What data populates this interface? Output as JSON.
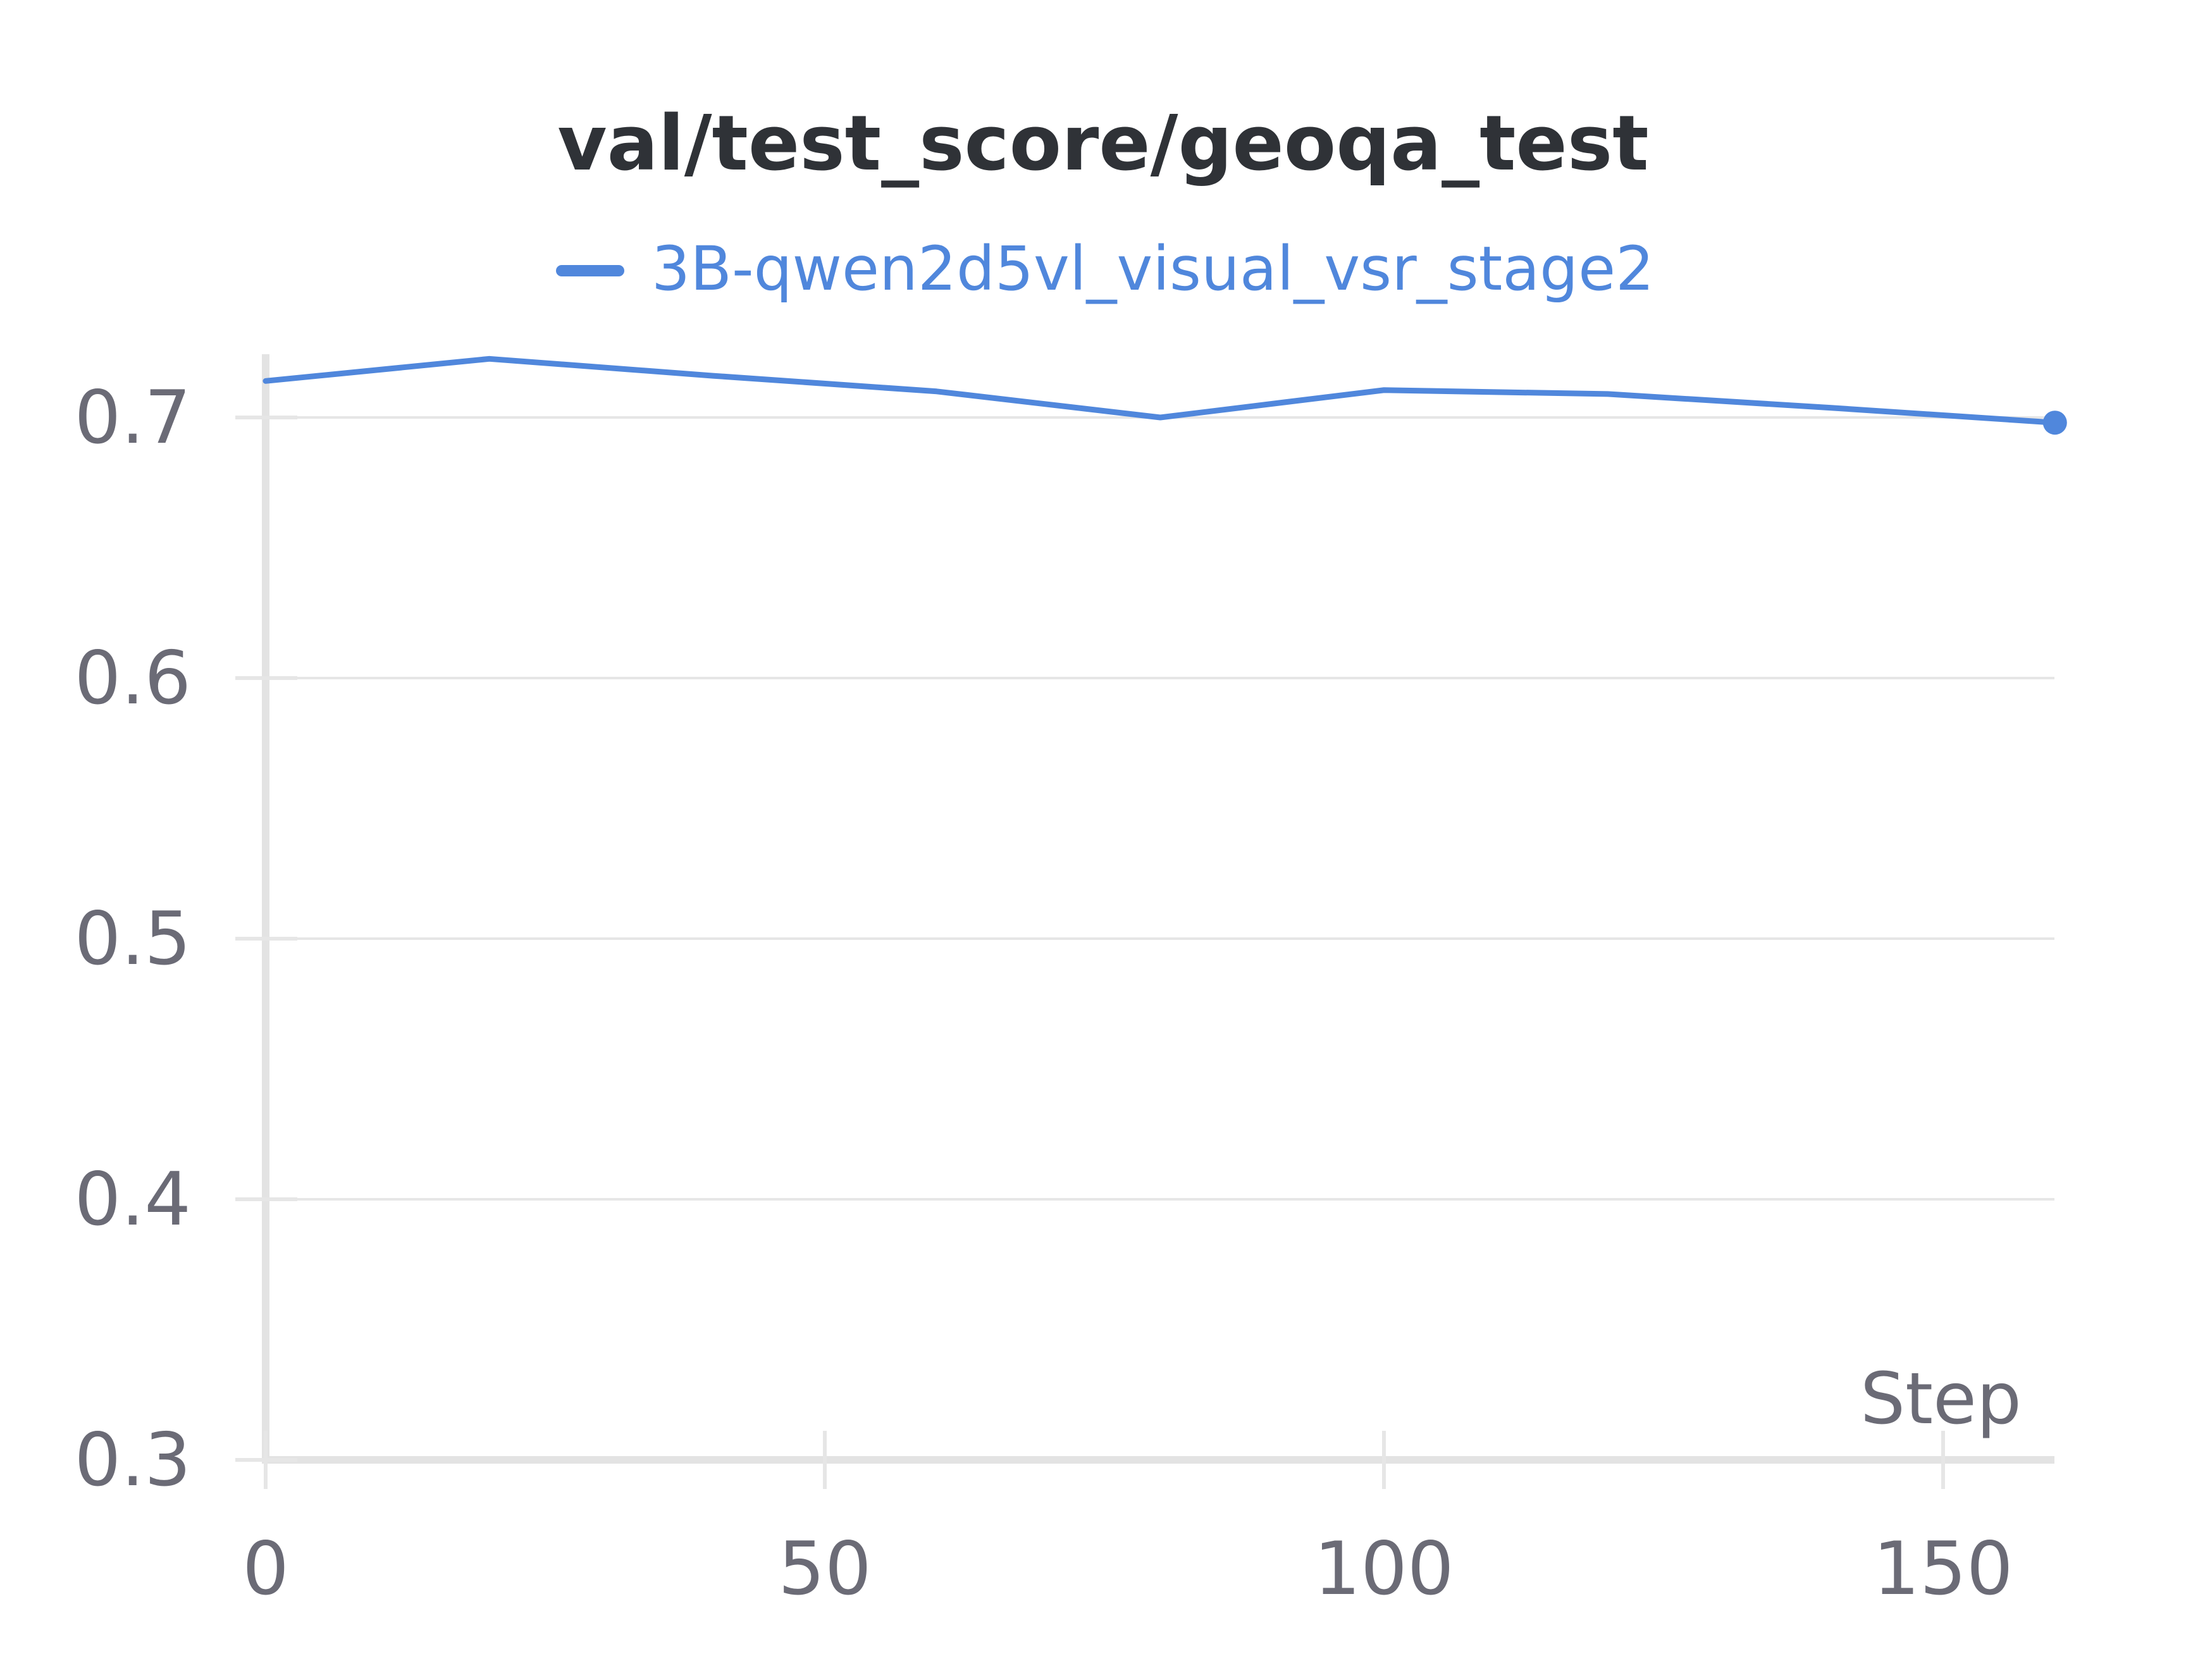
{
  "chart_data": {
    "type": "line",
    "title": "val/test_score/geoqa_test",
    "xlabel": "Step",
    "ylabel": "",
    "xlim": [
      0,
      160
    ],
    "ylim": [
      0.3,
      0.72
    ],
    "x_ticks": [
      0,
      50,
      100,
      150
    ],
    "x_tick_labels": [
      "0",
      "50",
      "100",
      "150"
    ],
    "y_ticks": [
      0.3,
      0.4,
      0.5,
      0.6,
      0.7
    ],
    "y_tick_labels": [
      "0.3",
      "0.4",
      "0.5",
      "0.6",
      "0.7"
    ],
    "grid": true,
    "legend_position": "top-center",
    "series": [
      {
        "name": "3B-qwen2d5vl_visual_vsr_stage2",
        "color": "#5087dc",
        "x": [
          0,
          20,
          40,
          60,
          80,
          100,
          120,
          140,
          160
        ],
        "y": [
          0.714,
          0.7225,
          0.716,
          0.71,
          0.7,
          0.7105,
          0.709,
          0.7037,
          0.698
        ]
      }
    ]
  }
}
